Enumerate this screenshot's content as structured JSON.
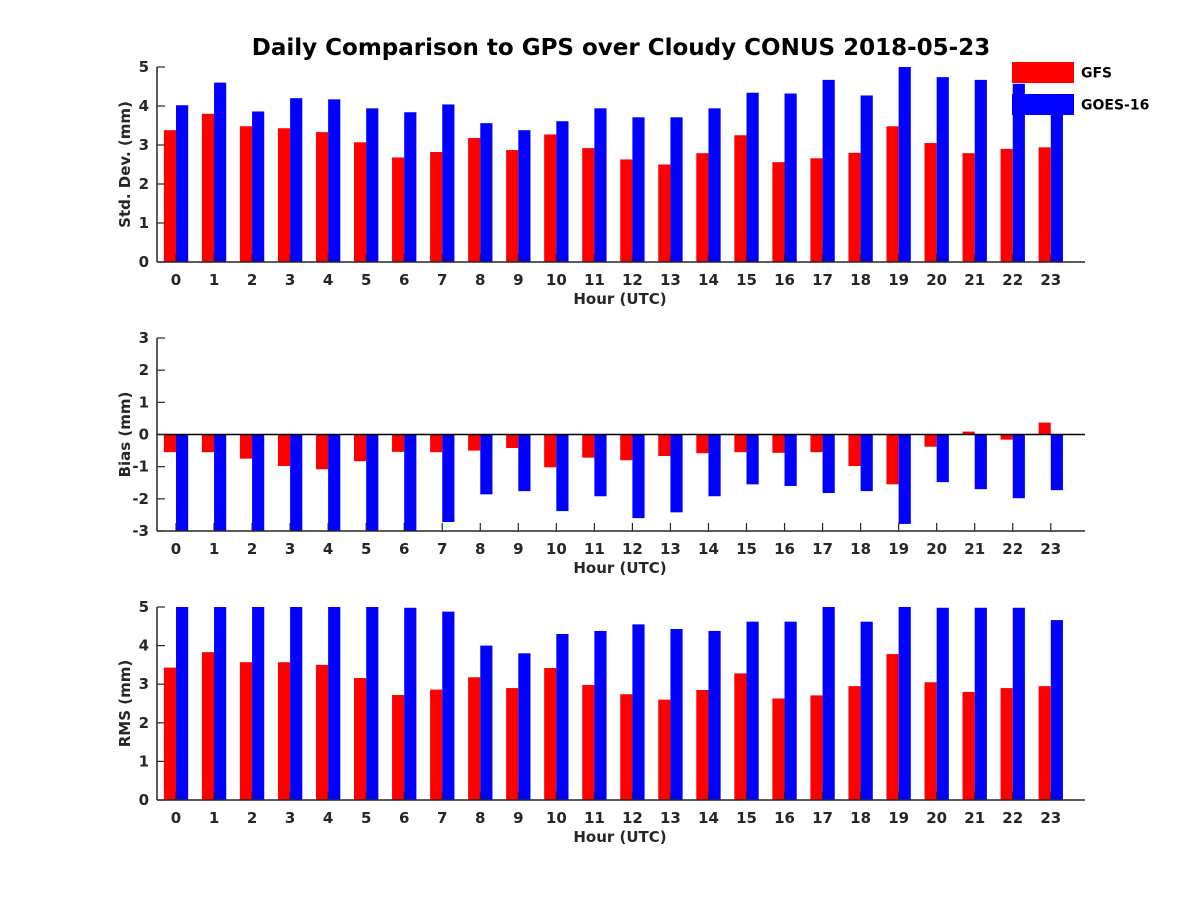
{
  "title": "Daily Comparison to GPS over Cloudy CONUS 2018-05-23",
  "legend": [
    {
      "name": "GFS",
      "color": "#ff0000"
    },
    {
      "name": "GOES-16",
      "color": "#0000ff"
    }
  ],
  "chart_data": [
    {
      "type": "bar",
      "xlabel": "Hour (UTC)",
      "ylabel": "Std. Dev. (mm)",
      "ylim": [
        0,
        5
      ],
      "yticks": [
        0,
        1,
        2,
        3,
        4,
        5
      ],
      "categories": [
        0,
        1,
        2,
        3,
        4,
        5,
        6,
        7,
        8,
        9,
        10,
        11,
        12,
        13,
        14,
        15,
        16,
        17,
        18,
        19,
        20,
        21,
        22,
        23
      ],
      "series": [
        {
          "name": "GFS",
          "values": [
            3.38,
            3.8,
            3.48,
            3.43,
            3.33,
            3.07,
            2.68,
            2.82,
            3.18,
            2.87,
            3.27,
            2.92,
            2.63,
            2.5,
            2.79,
            3.25,
            2.56,
            2.66,
            2.8,
            3.48,
            3.05,
            2.79,
            2.9,
            2.94
          ]
        },
        {
          "name": "GOES-16",
          "values": [
            4.02,
            4.6,
            3.86,
            4.2,
            4.17,
            3.94,
            3.84,
            4.04,
            3.56,
            3.38,
            3.61,
            3.94,
            3.71,
            3.71,
            3.94,
            4.34,
            4.32,
            4.67,
            4.27,
            5.0,
            4.74,
            4.67,
            4.57,
            4.3
          ]
        }
      ],
      "legend_position": "top-right"
    },
    {
      "type": "bar",
      "xlabel": "Hour (UTC)",
      "ylabel": "Bias (mm)",
      "ylim": [
        -3,
        3
      ],
      "yticks": [
        -3,
        -2,
        -1,
        0,
        1,
        2,
        3
      ],
      "categories": [
        0,
        1,
        2,
        3,
        4,
        5,
        6,
        7,
        8,
        9,
        10,
        11,
        12,
        13,
        14,
        15,
        16,
        17,
        18,
        19,
        20,
        21,
        22,
        23
      ],
      "series": [
        {
          "name": "GFS",
          "values": [
            -0.55,
            -0.55,
            -0.75,
            -0.98,
            -1.08,
            -0.83,
            -0.54,
            -0.55,
            -0.5,
            -0.42,
            -1.02,
            -0.72,
            -0.8,
            -0.67,
            -0.58,
            -0.55,
            -0.57,
            -0.55,
            -0.98,
            -1.55,
            -0.38,
            0.09,
            -0.16,
            0.37
          ]
        },
        {
          "name": "GOES-16",
          "values": [
            -3.0,
            -3.0,
            -3.0,
            -3.0,
            -3.0,
            -3.0,
            -3.0,
            -2.72,
            -1.86,
            -1.76,
            -2.38,
            -1.92,
            -2.6,
            -2.42,
            -1.92,
            -1.55,
            -1.6,
            -1.82,
            -1.76,
            -2.78,
            -1.48,
            -1.7,
            -1.98,
            -1.73
          ]
        }
      ]
    },
    {
      "type": "bar",
      "xlabel": "Hour (UTC)",
      "ylabel": "RMS (mm)",
      "ylim": [
        0,
        5
      ],
      "yticks": [
        0,
        1,
        2,
        3,
        4,
        5
      ],
      "categories": [
        0,
        1,
        2,
        3,
        4,
        5,
        6,
        7,
        8,
        9,
        10,
        11,
        12,
        13,
        14,
        15,
        16,
        17,
        18,
        19,
        20,
        21,
        22,
        23
      ],
      "series": [
        {
          "name": "GFS",
          "values": [
            3.43,
            3.83,
            3.57,
            3.57,
            3.5,
            3.16,
            2.72,
            2.86,
            3.18,
            2.9,
            3.42,
            2.98,
            2.74,
            2.6,
            2.85,
            3.28,
            2.63,
            2.71,
            2.95,
            3.78,
            3.05,
            2.8,
            2.9,
            2.95
          ]
        },
        {
          "name": "GOES-16",
          "values": [
            5.0,
            5.0,
            5.0,
            5.0,
            5.0,
            5.0,
            4.98,
            4.88,
            4.0,
            3.8,
            4.3,
            4.38,
            4.55,
            4.43,
            4.38,
            4.62,
            4.62,
            5.0,
            4.62,
            5.0,
            4.98,
            4.98,
            4.98,
            4.66
          ]
        }
      ]
    }
  ]
}
